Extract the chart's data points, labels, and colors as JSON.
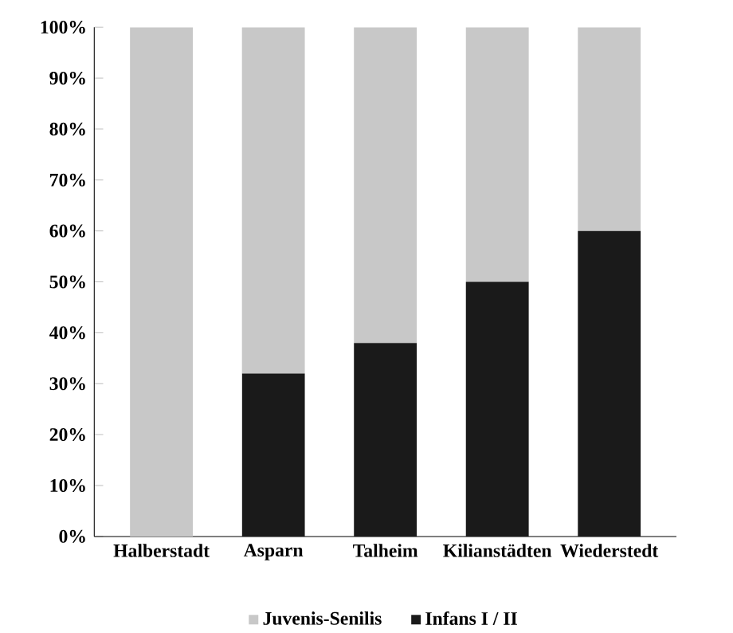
{
  "chart_data": {
    "type": "bar",
    "stacked": true,
    "categories": [
      "Halberstadt",
      "Asparn",
      "Talheim",
      "Kilianstädten",
      "Wiederstedt"
    ],
    "series": [
      {
        "name": "Infans I / II",
        "color": "#1a1a1a",
        "values": [
          0,
          32,
          38,
          50,
          60
        ]
      },
      {
        "name": "Juvenis-Senilis",
        "color": "#c8c8c8",
        "values": [
          100,
          68,
          62,
          50,
          40
        ]
      }
    ],
    "ylim": [
      0,
      100
    ],
    "yticks": [
      {
        "value": 0,
        "label": "0%"
      },
      {
        "value": 10,
        "label": "10%"
      },
      {
        "value": 20,
        "label": "20%"
      },
      {
        "value": 30,
        "label": "30%"
      },
      {
        "value": 40,
        "label": "40%"
      },
      {
        "value": 50,
        "label": "50%"
      },
      {
        "value": 60,
        "label": "60%"
      },
      {
        "value": 70,
        "label": "70%"
      },
      {
        "value": 80,
        "label": "80%"
      },
      {
        "value": 90,
        "label": "90%"
      },
      {
        "value": 100,
        "label": "100%"
      }
    ],
    "legend": "bottom"
  }
}
